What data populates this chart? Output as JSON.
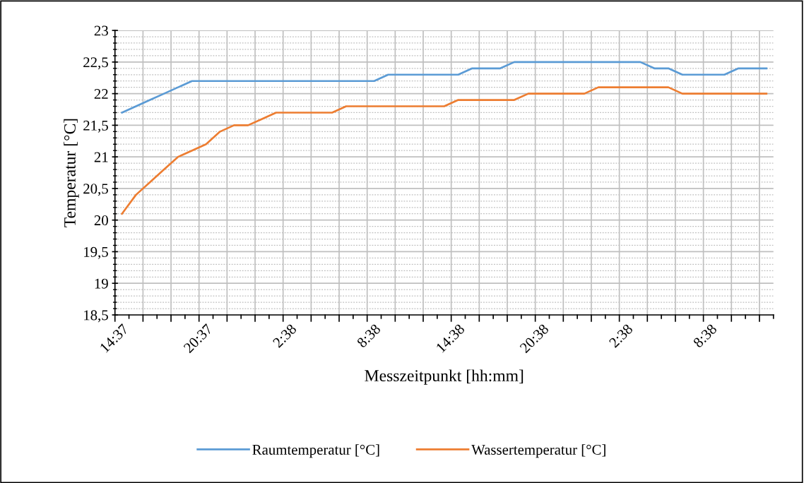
{
  "chart_data": {
    "type": "line",
    "xlabel": "Messzeitpunkt [hh:mm]",
    "ylabel": "Temperatur [°C]",
    "categories": [
      "14:37",
      null,
      null,
      null,
      null,
      null,
      "20:37",
      null,
      null,
      null,
      null,
      null,
      "2:38",
      null,
      null,
      null,
      null,
      null,
      "8:38",
      null,
      null,
      null,
      null,
      null,
      "14:38",
      null,
      null,
      null,
      null,
      null,
      "20:38",
      null,
      null,
      null,
      null,
      null,
      "2:38",
      null,
      null,
      null,
      null,
      null,
      "8:38",
      null,
      null,
      null,
      null
    ],
    "series": [
      {
        "name": "Raumtemperatur [°C]",
        "color": "#5b9bd5",
        "values": [
          21.7,
          21.8,
          21.9,
          22.0,
          22.1,
          22.2,
          22.2,
          22.2,
          22.2,
          22.2,
          22.2,
          22.2,
          22.2,
          22.2,
          22.2,
          22.2,
          22.2,
          22.2,
          22.2,
          22.3,
          22.3,
          22.3,
          22.3,
          22.3,
          22.3,
          22.4,
          22.4,
          22.4,
          22.5,
          22.5,
          22.5,
          22.5,
          22.5,
          22.5,
          22.5,
          22.5,
          22.5,
          22.5,
          22.4,
          22.4,
          22.3,
          22.3,
          22.3,
          22.3,
          22.4,
          22.4,
          22.4
        ]
      },
      {
        "name": "Wassertemperatur [°C]",
        "color": "#ed7d31",
        "values": [
          20.1,
          20.4,
          20.6,
          20.8,
          21.0,
          21.1,
          21.2,
          21.4,
          21.5,
          21.5,
          21.6,
          21.7,
          21.7,
          21.7,
          21.7,
          21.7,
          21.8,
          21.8,
          21.8,
          21.8,
          21.8,
          21.8,
          21.8,
          21.8,
          21.9,
          21.9,
          21.9,
          21.9,
          21.9,
          22.0,
          22.0,
          22.0,
          22.0,
          22.0,
          22.1,
          22.1,
          22.1,
          22.1,
          22.1,
          22.1,
          22.0,
          22.0,
          22.0,
          22.0,
          22.0,
          22.0,
          22.0
        ]
      }
    ],
    "ylim": [
      18.5,
      23
    ],
    "yticks": [
      {
        "value": 18.5,
        "label": "18,5"
      },
      19,
      {
        "value": 19.5,
        "label": "19,5"
      },
      20,
      {
        "value": 20.5,
        "label": "20,5"
      },
      21,
      {
        "value": 21.5,
        "label": "21,5"
      },
      22,
      {
        "value": 22.5,
        "label": "22,5"
      },
      23
    ],
    "grid": true,
    "legend": "bottom",
    "marker": "none",
    "line_style": "solid"
  }
}
